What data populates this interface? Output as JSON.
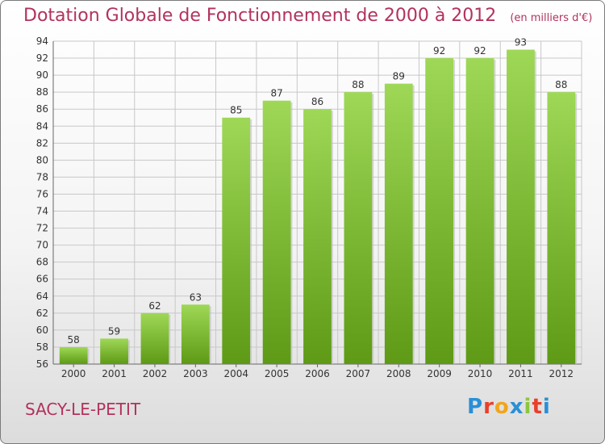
{
  "header": {
    "title": "Dotation Globale de Fonctionnement de 2000 à 2012",
    "unit": "(en milliers d'€)"
  },
  "footer": {
    "commune": "SACY-LE-PETIT",
    "brand_letters": [
      "P",
      "r",
      "o",
      "x",
      "i",
      "t",
      "i"
    ],
    "brand_colors": [
      "#2a8fd6",
      "#e8402a",
      "#f2a51a",
      "#2a8fd6",
      "#8cc63f",
      "#e8402a",
      "#2a8fd6"
    ]
  },
  "colors": {
    "bar_top": "#9ed856",
    "bar_bottom": "#5e9a16",
    "grid": "#c8c8c8",
    "text_accent": "#b2325e"
  },
  "chart_data": {
    "type": "bar",
    "title": "Dotation Globale de Fonctionnement de 2000 à 2012",
    "xlabel": "",
    "ylabel": "",
    "categories": [
      "2000",
      "2001",
      "2002",
      "2003",
      "2004",
      "2005",
      "2006",
      "2007",
      "2008",
      "2009",
      "2010",
      "2011",
      "2012"
    ],
    "values": [
      58,
      59,
      62,
      63,
      85,
      87,
      86,
      88,
      89,
      92,
      92,
      93,
      88
    ],
    "ylim": [
      56,
      94
    ],
    "yticks": [
      56,
      58,
      60,
      62,
      64,
      66,
      68,
      70,
      72,
      74,
      76,
      78,
      80,
      82,
      84,
      86,
      88,
      90,
      92,
      94
    ],
    "grid": true,
    "legend": "none"
  }
}
